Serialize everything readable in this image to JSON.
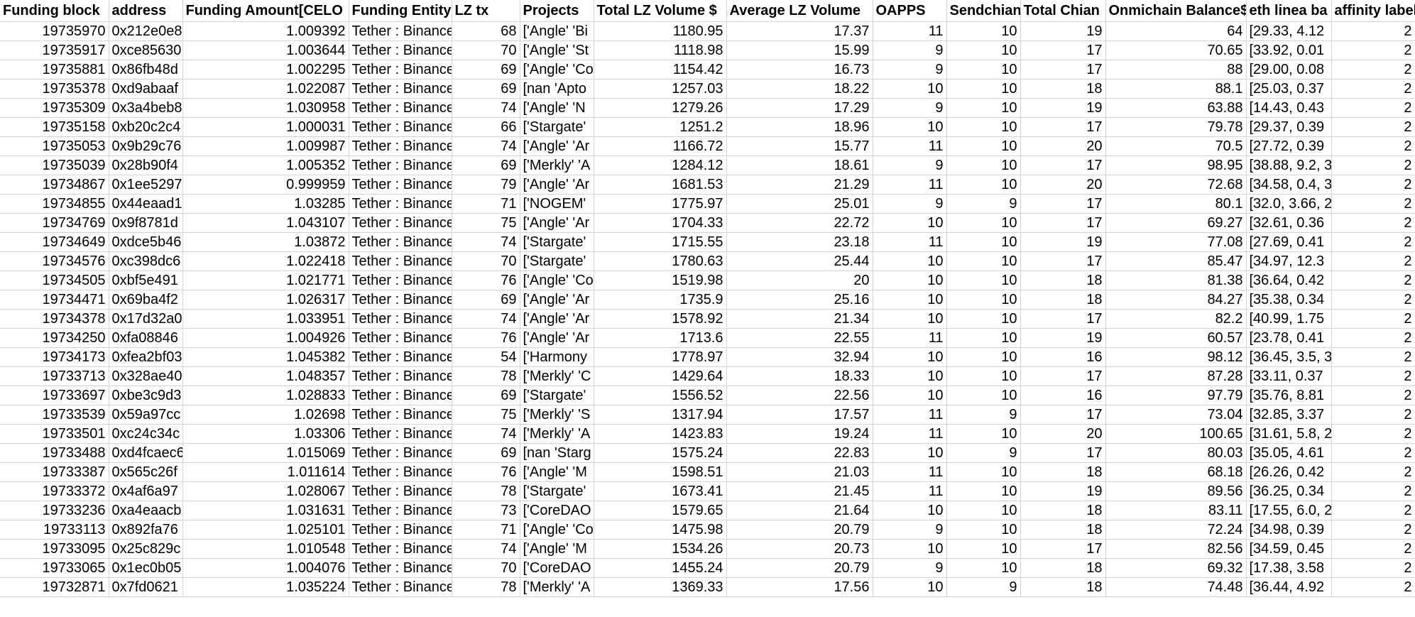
{
  "sheet": {
    "columns": [
      {
        "key": "funding_block",
        "label": "Funding block",
        "align": "num"
      },
      {
        "key": "address",
        "label": "address",
        "align": "txt"
      },
      {
        "key": "funding_amount",
        "label": "Funding Amount[CELO",
        "align": "num"
      },
      {
        "key": "funding_entity",
        "label": "Funding Entity",
        "align": "txt"
      },
      {
        "key": "lz_tx",
        "label": "LZ tx",
        "align": "num"
      },
      {
        "key": "projects",
        "label": "Projects",
        "align": "txt"
      },
      {
        "key": "total_lz_volume",
        "label": "Total LZ Volume $",
        "align": "num"
      },
      {
        "key": "average_lz_volume",
        "label": "Average LZ Volume",
        "align": "num"
      },
      {
        "key": "oapps",
        "label": "OAPPS",
        "align": "num"
      },
      {
        "key": "sendchain",
        "label": "Sendchian",
        "align": "num"
      },
      {
        "key": "total_chain",
        "label": "Total Chian",
        "align": "num"
      },
      {
        "key": "onmichain_balance",
        "label": "Onmichain Balance$",
        "align": "num"
      },
      {
        "key": "eth_linea",
        "label": "eth linea ba",
        "align": "txt"
      },
      {
        "key": "affinity",
        "label": "affinity label",
        "align": "num"
      }
    ],
    "rows": [
      [
        "19735970",
        "0x212e0e8",
        "1.009392",
        "Tether : Binance",
        "68",
        "['Angle' 'Bi",
        "1180.95",
        "17.37",
        "11",
        "10",
        "19",
        "64",
        "[29.33, 4.12",
        "2"
      ],
      [
        "19735917",
        "0xce85630",
        "1.003644",
        "Tether : Binance",
        "70",
        "['Angle' 'St",
        "1118.98",
        "15.99",
        "9",
        "10",
        "17",
        "70.65",
        "[33.92, 0.01",
        "2"
      ],
      [
        "19735881",
        "0x86fb48d",
        "1.002295",
        "Tether : Binance",
        "69",
        "['Angle' 'Co",
        "1154.42",
        "16.73",
        "9",
        "10",
        "17",
        "88",
        "[29.00, 0.08",
        "2"
      ],
      [
        "19735378",
        "0xd9abaaf",
        "1.022087",
        "Tether : Binance",
        "69",
        "[nan 'Apto",
        "1257.03",
        "18.22",
        "10",
        "10",
        "18",
        "88.1",
        "[25.03, 0.37",
        "2"
      ],
      [
        "19735309",
        "0x3a4beb8",
        "1.030958",
        "Tether : Binance",
        "74",
        "['Angle' 'N",
        "1279.26",
        "17.29",
        "9",
        "10",
        "19",
        "63.88",
        "[14.43, 0.43",
        "2"
      ],
      [
        "19735158",
        "0xb20c2c4",
        "1.000031",
        "Tether : Binance",
        "66",
        "['Stargate'",
        "1251.2",
        "18.96",
        "10",
        "10",
        "17",
        "79.78",
        "[29.37, 0.39",
        "2"
      ],
      [
        "19735053",
        "0x9b29c76",
        "1.009987",
        "Tether : Binance",
        "74",
        "['Angle' 'Ar",
        "1166.72",
        "15.77",
        "11",
        "10",
        "20",
        "70.5",
        "[27.72, 0.39",
        "2"
      ],
      [
        "19735039",
        "0x28b90f4",
        "1.005352",
        "Tether : Binance",
        "69",
        "['Merkly' 'A",
        "1284.12",
        "18.61",
        "9",
        "10",
        "17",
        "98.95",
        "[38.88, 9.2, 3",
        "2"
      ],
      [
        "19734867",
        "0x1ee5297",
        "0.999959",
        "Tether : Binance",
        "79",
        "['Angle' 'Ar",
        "1681.53",
        "21.29",
        "11",
        "10",
        "20",
        "72.68",
        "[34.58, 0.4, 3",
        "2"
      ],
      [
        "19734855",
        "0x44eaad1",
        "1.03285",
        "Tether : Binance",
        "71",
        "['NOGEM'",
        "1775.97",
        "25.01",
        "9",
        "9",
        "17",
        "80.1",
        "[32.0, 3.66, 2",
        "2"
      ],
      [
        "19734769",
        "0x9f8781d",
        "1.043107",
        "Tether : Binance",
        "75",
        "['Angle' 'Ar",
        "1704.33",
        "22.72",
        "10",
        "10",
        "17",
        "69.27",
        "[32.61, 0.36",
        "2"
      ],
      [
        "19734649",
        "0xdce5b46",
        "1.03872",
        "Tether : Binance",
        "74",
        "['Stargate'",
        "1715.55",
        "23.18",
        "11",
        "10",
        "19",
        "77.08",
        "[27.69, 0.41",
        "2"
      ],
      [
        "19734576",
        "0xc398dc6",
        "1.022418",
        "Tether : Binance",
        "70",
        "['Stargate'",
        "1780.63",
        "25.44",
        "10",
        "10",
        "17",
        "85.47",
        "[34.97, 12.3",
        "2"
      ],
      [
        "19734505",
        "0xbf5e491",
        "1.021771",
        "Tether : Binance",
        "76",
        "['Angle' 'Co",
        "1519.98",
        "20",
        "10",
        "10",
        "18",
        "81.38",
        "[36.64, 0.42",
        "2"
      ],
      [
        "19734471",
        "0x69ba4f2",
        "1.026317",
        "Tether : Binance",
        "69",
        "['Angle' 'Ar",
        "1735.9",
        "25.16",
        "10",
        "10",
        "18",
        "84.27",
        "[35.38, 0.34",
        "2"
      ],
      [
        "19734378",
        "0x17d32a0",
        "1.033951",
        "Tether : Binance",
        "74",
        "['Angle' 'Ar",
        "1578.92",
        "21.34",
        "10",
        "10",
        "17",
        "82.2",
        "[40.99, 1.75",
        "2"
      ],
      [
        "19734250",
        "0xfa08846",
        "1.004926",
        "Tether : Binance",
        "76",
        "['Angle' 'Ar",
        "1713.6",
        "22.55",
        "11",
        "10",
        "19",
        "60.57",
        "[23.78, 0.41",
        "2"
      ],
      [
        "19734173",
        "0xfea2bf03",
        "1.045382",
        "Tether : Binance",
        "54",
        "['Harmony",
        "1778.97",
        "32.94",
        "10",
        "10",
        "16",
        "98.12",
        "[36.45, 3.5, 3",
        "2"
      ],
      [
        "19733713",
        "0x328ae40",
        "1.048357",
        "Tether : Binance",
        "78",
        "['Merkly' 'C",
        "1429.64",
        "18.33",
        "10",
        "10",
        "17",
        "87.28",
        "[33.11, 0.37",
        "2"
      ],
      [
        "19733697",
        "0xbe3c9d3",
        "1.028833",
        "Tether : Binance",
        "69",
        "['Stargate'",
        "1556.52",
        "22.56",
        "10",
        "10",
        "16",
        "97.79",
        "[35.76, 8.81",
        "2"
      ],
      [
        "19733539",
        "0x59a97cc",
        "1.02698",
        "Tether : Binance",
        "75",
        "['Merkly' 'S",
        "1317.94",
        "17.57",
        "11",
        "9",
        "17",
        "73.04",
        "[32.85, 3.37",
        "2"
      ],
      [
        "19733501",
        "0xc24c34c",
        "1.03306",
        "Tether : Binance",
        "74",
        "['Merkly' 'A",
        "1423.83",
        "19.24",
        "11",
        "10",
        "20",
        "100.65",
        "[31.61, 5.8, 2",
        "2"
      ],
      [
        "19733488",
        "0xd4fcaec6",
        "1.015069",
        "Tether : Binance",
        "69",
        "[nan 'Starg",
        "1575.24",
        "22.83",
        "10",
        "9",
        "17",
        "80.03",
        "[35.05, 4.61",
        "2"
      ],
      [
        "19733387",
        "0x565c26f",
        "1.011614",
        "Tether : Binance",
        "76",
        "['Angle' 'M",
        "1598.51",
        "21.03",
        "11",
        "10",
        "18",
        "68.18",
        "[26.26, 0.42",
        "2"
      ],
      [
        "19733372",
        "0x4af6a97",
        "1.028067",
        "Tether : Binance",
        "78",
        "['Stargate'",
        "1673.41",
        "21.45",
        "11",
        "10",
        "19",
        "89.56",
        "[36.25, 0.34",
        "2"
      ],
      [
        "19733236",
        "0xa4eaacb",
        "1.031631",
        "Tether : Binance",
        "73",
        "['CoreDAO",
        "1579.65",
        "21.64",
        "10",
        "10",
        "18",
        "83.11",
        "[17.55, 6.0, 2",
        "2"
      ],
      [
        "19733113",
        "0x892fa76",
        "1.025101",
        "Tether : Binance",
        "71",
        "['Angle' 'Co",
        "1475.98",
        "20.79",
        "9",
        "10",
        "18",
        "72.24",
        "[34.98, 0.39",
        "2"
      ],
      [
        "19733095",
        "0x25c829c",
        "1.010548",
        "Tether : Binance",
        "74",
        "['Angle' 'M",
        "1534.26",
        "20.73",
        "10",
        "10",
        "17",
        "82.56",
        "[34.59, 0.45",
        "2"
      ],
      [
        "19733065",
        "0x1ec0b05",
        "1.004076",
        "Tether : Binance",
        "70",
        "['CoreDAO",
        "1455.24",
        "20.79",
        "9",
        "10",
        "18",
        "69.32",
        "[17.38, 3.58",
        "2"
      ],
      [
        "19732871",
        "0x7fd0621",
        "1.035224",
        "Tether : Binance",
        "78",
        "['Merkly' 'A",
        "1369.33",
        "17.56",
        "10",
        "9",
        "18",
        "74.48",
        "[36.44, 4.92",
        "2"
      ]
    ]
  }
}
